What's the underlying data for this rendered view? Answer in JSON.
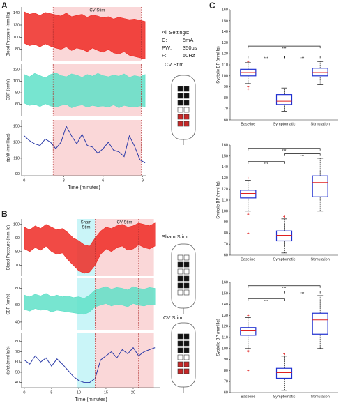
{
  "panels": [
    "A",
    "B",
    "C"
  ],
  "settings": {
    "title": "All Settings:",
    "rows": [
      [
        "C:",
        "5mA"
      ],
      [
        "PW:",
        "350μs"
      ],
      [
        "F:",
        "50Hz"
      ]
    ]
  },
  "side_labels": [
    {
      "text": "CV Stim",
      "color": "#e8231c"
    },
    {
      "text": "Sham Stim",
      "color": "#4fd6e6"
    },
    {
      "text": "CV Stim",
      "color": "#e8231c"
    }
  ],
  "chart_data": [
    {
      "type": "band",
      "ylabel": "Blood Pressure (mmHg)",
      "color": "#ee2a24",
      "x": [
        0,
        0.4,
        0.8,
        1.2,
        1.6,
        2,
        2.4,
        2.8,
        3.2,
        3.6,
        4,
        4.4,
        4.8,
        5.2,
        5.6,
        6,
        6.4,
        6.8,
        7.2,
        7.6,
        8,
        8.4,
        8.8,
        9.2
      ],
      "upper": [
        142,
        138,
        140,
        136,
        141,
        139,
        137,
        135,
        140,
        134,
        136,
        138,
        133,
        137,
        135,
        132,
        134,
        130,
        133,
        131,
        129,
        130,
        128,
        126
      ],
      "lower": [
        90,
        86,
        88,
        84,
        89,
        85,
        82,
        80,
        84,
        78,
        82,
        80,
        76,
        82,
        78,
        75,
        80,
        74,
        72,
        76,
        70,
        68,
        66,
        64
      ],
      "xlim": [
        -0.2,
        9.3
      ],
      "ylim": [
        60,
        150
      ],
      "yticks": [
        80,
        100,
        120,
        140
      ],
      "regions": [
        {
          "xlim": [
            2.2,
            8.9
          ],
          "color": "#f8c9cb",
          "label": [
            "CV Stim"
          ]
        }
      ],
      "markers": [
        {
          "x": 2.2,
          "color": "#b03030"
        },
        {
          "x": 8.9,
          "color": "#b03030"
        }
      ]
    },
    {
      "type": "band",
      "ylabel": "CBF (cm/s)",
      "color": "#5fe0c8",
      "x": [
        0,
        0.4,
        0.8,
        1.2,
        1.6,
        2,
        2.4,
        2.8,
        3.2,
        3.6,
        4,
        4.4,
        4.8,
        5.2,
        5.6,
        6,
        6.4,
        6.8,
        7.2,
        7.6,
        8,
        8.4,
        8.8,
        9.2
      ],
      "upper": [
        112,
        108,
        114,
        110,
        106,
        112,
        115,
        110,
        108,
        113,
        111,
        107,
        112,
        109,
        114,
        110,
        108,
        111,
        109,
        113,
        107,
        110,
        108,
        112
      ],
      "lower": [
        62,
        58,
        60,
        56,
        61,
        57,
        55,
        58,
        60,
        54,
        57,
        59,
        55,
        58,
        56,
        57,
        55,
        59,
        54,
        58,
        56,
        55,
        57,
        56
      ],
      "xlim": [
        -0.2,
        9.3
      ],
      "ylim": [
        40,
        130
      ],
      "yticks": [
        60,
        80,
        100,
        120
      ],
      "regions": [
        {
          "xlim": [
            2.2,
            8.9
          ],
          "color": "#f8c9cb"
        }
      ],
      "markers": [
        {
          "x": 2.2,
          "color": "#b03030"
        },
        {
          "x": 8.9,
          "color": "#b03030"
        }
      ]
    },
    {
      "type": "line",
      "ylabel": "dp/dt (mmHg/s)",
      "color": "#2b3ba8",
      "xlabel": "Time (minutes)",
      "x": [
        0,
        0.4,
        0.8,
        1.2,
        1.6,
        2,
        2.4,
        2.8,
        3.2,
        3.6,
        4,
        4.4,
        4.8,
        5.2,
        5.6,
        6,
        6.4,
        6.8,
        7.2,
        7.6,
        8,
        8.4,
        8.8,
        9.2
      ],
      "values": [
        138,
        132,
        128,
        126,
        134,
        130,
        122,
        130,
        150,
        138,
        128,
        140,
        126,
        124,
        116,
        122,
        130,
        120,
        118,
        112,
        138,
        125,
        108,
        104
      ],
      "xlim": [
        -0.2,
        9.3
      ],
      "xticks": [
        0,
        3,
        6,
        9
      ],
      "ylim": [
        88,
        158
      ],
      "yticks": [
        90,
        110,
        130,
        150
      ],
      "regions": [
        {
          "xlim": [
            2.2,
            8.9
          ],
          "color": "#f8c9cb"
        }
      ],
      "markers": [
        {
          "x": 2.2,
          "color": "#b03030"
        },
        {
          "x": 8.9,
          "color": "#b03030"
        }
      ]
    },
    {
      "type": "band",
      "ylabel": "Blood Pressure (mmHg)",
      "color": "#ee2a24",
      "x": [
        0,
        1,
        2,
        3,
        4,
        5,
        6,
        7,
        8,
        9,
        10,
        11,
        12,
        13,
        14,
        15,
        16,
        17,
        18,
        19,
        20,
        21,
        22,
        23,
        24
      ],
      "upper": [
        98,
        96,
        99,
        97,
        100,
        98,
        96,
        97,
        94,
        90,
        88,
        85,
        84,
        90,
        95,
        98,
        97,
        99,
        100,
        98,
        99,
        101,
        100,
        99,
        101
      ],
      "lower": [
        82,
        80,
        83,
        81,
        84,
        80,
        78,
        79,
        74,
        70,
        66,
        64,
        65,
        70,
        78,
        82,
        80,
        83,
        84,
        81,
        82,
        85,
        83,
        82,
        84
      ],
      "xlim": [
        -0.5,
        25
      ],
      "ylim": [
        62,
        104
      ],
      "yticks": [
        70,
        80,
        90,
        100
      ],
      "regions": [
        {
          "xlim": [
            9.7,
            13
          ],
          "color": "#b8f2f6",
          "label": [
            "Sham",
            "Stim"
          ],
          "label_color": "#4fd6e6"
        },
        {
          "xlim": [
            13,
            23.8
          ],
          "color": "#f8c9cb",
          "label": [
            "CV Stim"
          ],
          "label_color": "#e8231c"
        }
      ],
      "markers": [
        {
          "x": 9.7,
          "color": "#4fd6e6"
        },
        {
          "x": 13,
          "color": "#b03030"
        },
        {
          "x": 21,
          "color": "#b03030"
        }
      ]
    },
    {
      "type": "band",
      "ylabel": "CBF (cm/s)",
      "color": "#5fe0c8",
      "x": [
        0,
        1,
        2,
        3,
        4,
        5,
        6,
        7,
        8,
        9,
        10,
        11,
        12,
        13,
        14,
        15,
        16,
        17,
        18,
        19,
        20,
        21,
        22,
        23,
        24
      ],
      "upper": [
        72,
        70,
        73,
        71,
        74,
        70,
        72,
        70,
        71,
        69,
        70,
        68,
        72,
        78,
        80,
        82,
        79,
        81,
        80,
        78,
        82,
        80,
        79,
        81,
        80
      ],
      "lower": [
        55,
        53,
        56,
        54,
        55,
        52,
        54,
        53,
        52,
        51,
        50,
        49,
        52,
        58,
        60,
        62,
        59,
        61,
        60,
        58,
        62,
        60,
        59,
        61,
        60
      ],
      "xlim": [
        -0.5,
        25
      ],
      "ylim": [
        30,
        92
      ],
      "yticks": [
        40,
        60,
        80
      ],
      "regions": [
        {
          "xlim": [
            9.7,
            13
          ],
          "color": "#b8f2f6"
        },
        {
          "xlim": [
            13,
            23.8
          ],
          "color": "#f8c9cb"
        }
      ],
      "markers": [
        {
          "x": 9.7,
          "color": "#4fd6e6"
        },
        {
          "x": 13,
          "color": "#b03030"
        },
        {
          "x": 21,
          "color": "#b03030"
        }
      ]
    },
    {
      "type": "line",
      "ylabel": "dp/dt (mmHg/s)",
      "color": "#2b3ba8",
      "xlabel": "Time (minutes)",
      "x": [
        0,
        1,
        2,
        3,
        4,
        5,
        6,
        7,
        8,
        9,
        10,
        11,
        12,
        13,
        14,
        15,
        16,
        17,
        18,
        19,
        20,
        21,
        22,
        23,
        24
      ],
      "values": [
        62,
        58,
        66,
        60,
        64,
        56,
        63,
        58,
        52,
        46,
        42,
        40,
        40,
        44,
        62,
        66,
        70,
        64,
        72,
        68,
        74,
        66,
        70,
        72,
        74
      ],
      "xlim": [
        -0.5,
        25
      ],
      "xticks": [
        0,
        5,
        10,
        15,
        20
      ],
      "ylim": [
        35,
        88
      ],
      "yticks": [
        40,
        50,
        60,
        70,
        80
      ],
      "regions": [
        {
          "xlim": [
            9.7,
            13
          ],
          "color": "#b8f2f6"
        },
        {
          "xlim": [
            13,
            23.8
          ],
          "color": "#f8c9cb"
        }
      ],
      "markers": [
        {
          "x": 9.7,
          "color": "#4fd6e6"
        },
        {
          "x": 13,
          "color": "#b03030"
        },
        {
          "x": 21,
          "color": "#b03030"
        }
      ]
    },
    {
      "type": "box",
      "ylabel": "Systolic BP (mmHg)",
      "categories": [
        "Baseline",
        "Symptomatic",
        "Stimulation"
      ],
      "ylim": [
        60,
        160
      ],
      "yticks": [
        60,
        70,
        80,
        90,
        100,
        110,
        120,
        130,
        140,
        150,
        160
      ],
      "boxes": [
        {
          "whislo": 93,
          "q1": 100,
          "med": 103,
          "q3": 106,
          "whishi": 112,
          "fliers": [
            88,
            90,
            113
          ]
        },
        {
          "whislo": 68,
          "q1": 74,
          "med": 77,
          "q3": 83,
          "whishi": 89,
          "fliers": []
        },
        {
          "whislo": 92,
          "q1": 100,
          "med": 103,
          "q3": 107,
          "whishi": 113,
          "fliers": []
        }
      ],
      "significance": [
        {
          "pair": [
            0,
            1
          ],
          "y": 118,
          "label": "***"
        },
        {
          "pair": [
            1,
            2
          ],
          "y": 118,
          "label": "***"
        },
        {
          "pair": [
            0,
            2
          ],
          "y": 127,
          "label": "***"
        }
      ]
    },
    {
      "type": "box",
      "ylabel": "Systolic BP (mmHg)",
      "categories": [
        "Baseline",
        "Symptomatic",
        "Stimulation"
      ],
      "ylim": [
        60,
        160
      ],
      "yticks": [
        60,
        70,
        80,
        90,
        100,
        110,
        120,
        130,
        140,
        150,
        160
      ],
      "boxes": [
        {
          "whislo": 100,
          "q1": 112,
          "med": 116,
          "q3": 119,
          "whishi": 128,
          "fliers": [
            80,
            97,
            98,
            130
          ]
        },
        {
          "whislo": 62,
          "q1": 73,
          "med": 78,
          "q3": 82,
          "whishi": 93,
          "fliers": [
            95
          ]
        },
        {
          "whislo": 100,
          "q1": 113,
          "med": 126,
          "q3": 132,
          "whishi": 148,
          "fliers": []
        }
      ],
      "significance": [
        {
          "pair": [
            0,
            1
          ],
          "y": 145,
          "label": "***"
        },
        {
          "pair": [
            1,
            2
          ],
          "y": 152,
          "label": "***"
        },
        {
          "pair": [
            0,
            2
          ],
          "y": 157,
          "label": "***"
        }
      ]
    },
    {
      "type": "box",
      "ylabel": "Systolic BP (mmHg)",
      "categories": [
        "Baseline",
        "Symptomatic",
        "Stimulation"
      ],
      "ylim": [
        60,
        160
      ],
      "yticks": [
        60,
        70,
        80,
        90,
        100,
        110,
        120,
        130,
        140,
        150,
        160
      ],
      "boxes": [
        {
          "whislo": 100,
          "q1": 112,
          "med": 116,
          "q3": 119,
          "whishi": 128,
          "fliers": [
            80,
            97,
            98,
            130
          ]
        },
        {
          "whislo": 62,
          "q1": 73,
          "med": 78,
          "q3": 82,
          "whishi": 93,
          "fliers": [
            95
          ]
        },
        {
          "whislo": 100,
          "q1": 113,
          "med": 126,
          "q3": 132,
          "whishi": 148,
          "fliers": []
        }
      ],
      "significance": [
        {
          "pair": [
            0,
            1
          ],
          "y": 145,
          "label": "***"
        },
        {
          "pair": [
            1,
            2
          ],
          "y": 152,
          "label": "***"
        },
        {
          "pair": [
            0,
            2
          ],
          "y": 157,
          "label": "***"
        }
      ]
    }
  ]
}
